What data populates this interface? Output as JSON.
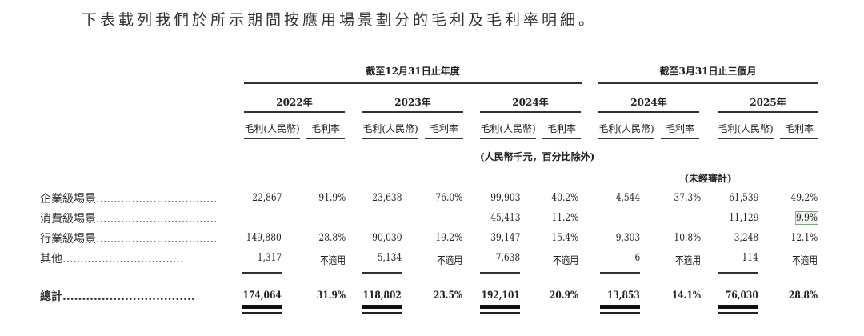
{
  "intro": "下表載列我們於所示期間按應用場景劃分的毛利及毛利率明細。",
  "header": {
    "annual_period": "截至12月31日止年度",
    "quarter_period": "截至3月31日止三個月",
    "years": [
      "2022年",
      "2023年",
      "2024年",
      "2024年",
      "2025年"
    ],
    "col_amount": "毛利(人民幣)",
    "col_margin": "毛利率",
    "unit_note": "(人民幣千元，百分比除外)",
    "unaudited_note": "(未經審計)"
  },
  "rows": [
    {
      "label": "企業級場景",
      "values": [
        "22,867",
        "91.9%",
        "23,638",
        "76.0%",
        "99,903",
        "40.2%",
        "4,544",
        "37.3%",
        "61,539",
        "49.2%"
      ]
    },
    {
      "label": "消費級場景",
      "values": [
        "–",
        "–",
        "–",
        "–",
        "45,413",
        "11.2%",
        "–",
        "–",
        "11,129",
        "9.9%"
      ]
    },
    {
      "label": "行業級場景",
      "values": [
        "149,880",
        "28.8%",
        "90,030",
        "19.2%",
        "39,147",
        "15.4%",
        "9,303",
        "10.8%",
        "3,248",
        "12.1%"
      ]
    },
    {
      "label": "其他",
      "values": [
        "1,317",
        "不適用",
        "5,134",
        "不適用",
        "7,638",
        "不適用",
        "6",
        "不適用",
        "114",
        "不適用"
      ]
    }
  ],
  "total": {
    "label": "總計",
    "values": [
      "174,064",
      "31.9%",
      "118,802",
      "23.5%",
      "192,101",
      "20.9%",
      "13,853",
      "14.1%",
      "76,030",
      "28.8%"
    ]
  },
  "highlight_color": "#7aa87a"
}
